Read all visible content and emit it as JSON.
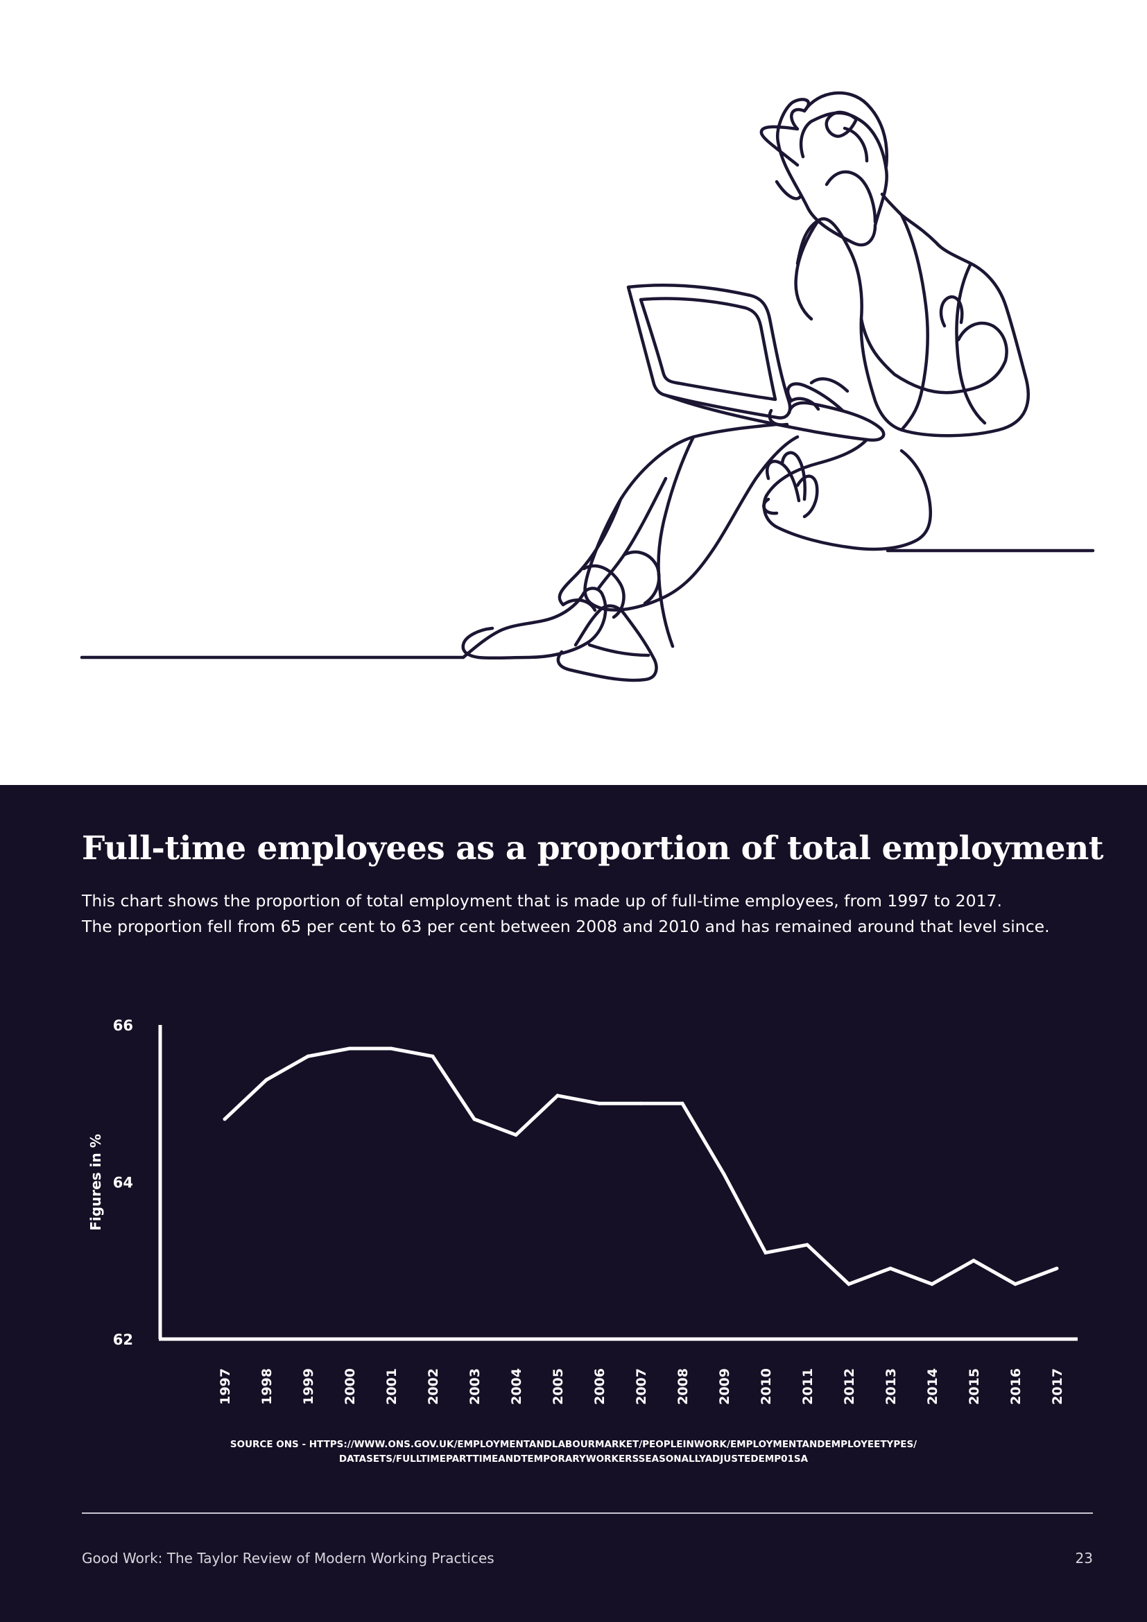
{
  "heading": "Full-time employees as a proportion of total employment",
  "intro": [
    "This chart shows the proportion of total employment that is made up of full-time employees, from 1997 to 2017.",
    "The proportion fell from 65 per cent to 63 per cent between 2008 and 2010 and has remained around that level since."
  ],
  "source": [
    "SOURCE ONS - HTTPS://WWW.ONS.GOV.UK/EMPLOYMENTANDLABOURMARKET/PEOPLEINWORK/EMPLOYMENTANDEMPLOYEETYPES/",
    "DATASETS/FULLTIMEPARTTIMEANDTEMPORARYWORKERSSEASONALLYADJUSTEDEMP01SA"
  ],
  "footer": {
    "title": "Good Work: The Taylor Review of Modern Working Practices",
    "page_number": "23"
  },
  "colors": {
    "panel": "#151025",
    "line": "#ffffff",
    "illustration_stroke": "#1c1633"
  },
  "chart_data": {
    "type": "line",
    "title": "Full-time employees as a proportion of total employment",
    "ylabel": "Figures in %",
    "xlabel": "",
    "ylim": [
      62,
      66
    ],
    "yticks": [
      66,
      64,
      62
    ],
    "grid": false,
    "x": [
      "1997",
      "1998",
      "1999",
      "2000",
      "2001",
      "2002",
      "2003",
      "2004",
      "2005",
      "2006",
      "2007",
      "2008",
      "2009",
      "2010",
      "2011",
      "2012",
      "2013",
      "2014",
      "2015",
      "2016",
      "2017"
    ],
    "series": [
      {
        "values": [
          64.8,
          65.3,
          65.6,
          65.7,
          65.7,
          65.6,
          64.8,
          64.6,
          65.1,
          65.0,
          65.0,
          65.0,
          64.1,
          63.1,
          63.2,
          62.7,
          62.9,
          62.7,
          63.0,
          62.7,
          62.9
        ]
      }
    ]
  }
}
